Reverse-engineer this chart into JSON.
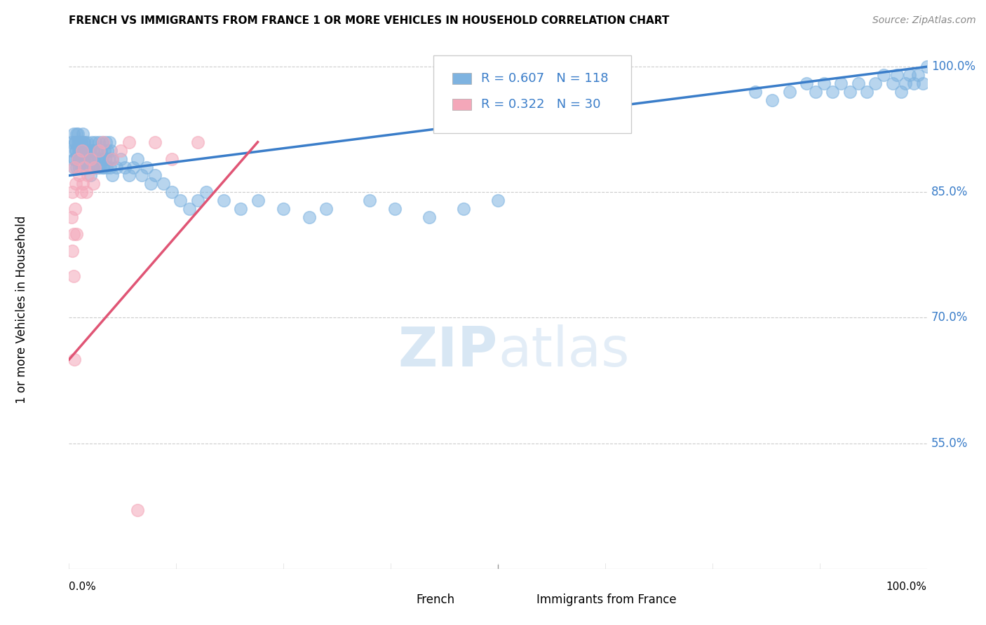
{
  "title": "FRENCH VS IMMIGRANTS FROM FRANCE 1 OR MORE VEHICLES IN HOUSEHOLD CORRELATION CHART",
  "source": "Source: ZipAtlas.com",
  "ylabel": "1 or more Vehicles in Household",
  "legend_french_label": "French",
  "legend_immigrant_label": "Immigrants from France",
  "legend_french_R": "R = 0.607",
  "legend_french_N": "N = 118",
  "legend_immigrant_R": "R = 0.322",
  "legend_immigrant_N": "N = 30",
  "french_color": "#7eb3e0",
  "immigrant_color": "#f4a7b9",
  "trendline_french_color": "#3a7dc9",
  "trendline_immigrant_color": "#e05575",
  "ytick_vals": [
    100,
    85,
    70,
    55
  ],
  "ytick_labels": [
    "100.0%",
    "85.0%",
    "70.0%",
    "55.0%"
  ],
  "ymin": 40,
  "ymax": 102,
  "xmin": 0,
  "xmax": 100,
  "french_trendline_x": [
    0,
    100
  ],
  "french_trendline_y": [
    87.0,
    100.0
  ],
  "immigrant_trendline_x": [
    0,
    22
  ],
  "immigrant_trendline_y": [
    65.0,
    91.0
  ],
  "french_x": [
    0.3,
    0.4,
    0.5,
    0.6,
    0.7,
    0.8,
    0.9,
    1.0,
    1.0,
    1.1,
    1.2,
    1.3,
    1.4,
    1.5,
    1.6,
    1.7,
    1.8,
    1.9,
    2.0,
    2.1,
    2.2,
    2.3,
    2.4,
    2.5,
    2.6,
    2.7,
    2.8,
    2.9,
    3.0,
    3.1,
    3.2,
    3.3,
    3.4,
    3.5,
    3.6,
    3.7,
    3.8,
    3.9,
    4.0,
    4.1,
    4.2,
    4.3,
    4.4,
    4.5,
    4.6,
    4.7,
    4.8,
    4.9,
    5.0,
    5.5,
    6.0,
    6.5,
    7.0,
    7.5,
    8.0,
    8.5,
    9.0,
    9.5,
    10.0,
    11.0,
    12.0,
    13.0,
    14.0,
    15.0,
    16.0,
    18.0,
    20.0,
    22.0,
    25.0,
    28.0,
    30.0,
    35.0,
    38.0,
    42.0,
    46.0,
    50.0,
    80.0,
    82.0,
    84.0,
    86.0,
    87.0,
    88.0,
    89.0,
    90.0,
    91.0,
    92.0,
    93.0,
    94.0,
    95.0,
    96.0,
    96.5,
    97.0,
    97.5,
    98.0,
    98.5,
    99.0,
    99.5,
    100.0,
    0.5,
    0.6,
    0.7,
    0.8,
    0.9,
    1.0,
    1.1,
    1.2,
    1.3,
    1.4,
    1.5,
    1.6,
    1.7,
    1.8,
    2.0,
    2.5,
    3.0,
    3.5,
    4.0,
    5.0
  ],
  "french_y": [
    91.0,
    90.0,
    92.0,
    89.0,
    91.0,
    90.0,
    88.0,
    89.0,
    92.0,
    90.0,
    91.0,
    89.0,
    88.0,
    90.0,
    92.0,
    91.0,
    89.0,
    90.0,
    88.0,
    91.0,
    89.0,
    90.0,
    88.0,
    87.0,
    89.0,
    91.0,
    90.0,
    88.0,
    89.0,
    91.0,
    90.0,
    88.0,
    89.0,
    91.0,
    88.0,
    90.0,
    89.0,
    91.0,
    88.0,
    90.0,
    89.0,
    91.0,
    88.0,
    90.0,
    89.0,
    91.0,
    88.0,
    90.0,
    89.0,
    88.0,
    89.0,
    88.0,
    87.0,
    88.0,
    89.0,
    87.0,
    88.0,
    86.0,
    87.0,
    86.0,
    85.0,
    84.0,
    83.0,
    84.0,
    85.0,
    84.0,
    83.0,
    84.0,
    83.0,
    82.0,
    83.0,
    84.0,
    83.0,
    82.0,
    83.0,
    84.0,
    97.0,
    96.0,
    97.0,
    98.0,
    97.0,
    98.0,
    97.0,
    98.0,
    97.0,
    98.0,
    97.0,
    98.0,
    99.0,
    98.0,
    99.0,
    97.0,
    98.0,
    99.0,
    98.0,
    99.0,
    98.0,
    100.0,
    88.0,
    89.0,
    91.0,
    90.0,
    92.0,
    91.0,
    89.0,
    88.0,
    90.0,
    91.0,
    89.0,
    88.0,
    90.0,
    91.0,
    89.0,
    90.0,
    88.0,
    89.0,
    88.0,
    87.0
  ],
  "immigrant_x": [
    0.3,
    0.4,
    0.5,
    0.6,
    0.7,
    0.8,
    0.9,
    1.0,
    1.2,
    1.4,
    1.5,
    1.6,
    1.8,
    2.0,
    2.2,
    2.5,
    2.8,
    3.0,
    3.5,
    4.0,
    5.0,
    6.0,
    7.0,
    8.0,
    10.0,
    12.0,
    15.0,
    0.4,
    0.5,
    0.6
  ],
  "immigrant_y": [
    82.0,
    85.0,
    80.0,
    88.0,
    83.0,
    86.0,
    80.0,
    89.0,
    87.0,
    85.0,
    90.0,
    86.0,
    88.0,
    85.0,
    87.0,
    89.0,
    86.0,
    88.0,
    90.0,
    91.0,
    89.0,
    90.0,
    91.0,
    47.0,
    91.0,
    89.0,
    91.0,
    78.0,
    75.0,
    65.0
  ]
}
